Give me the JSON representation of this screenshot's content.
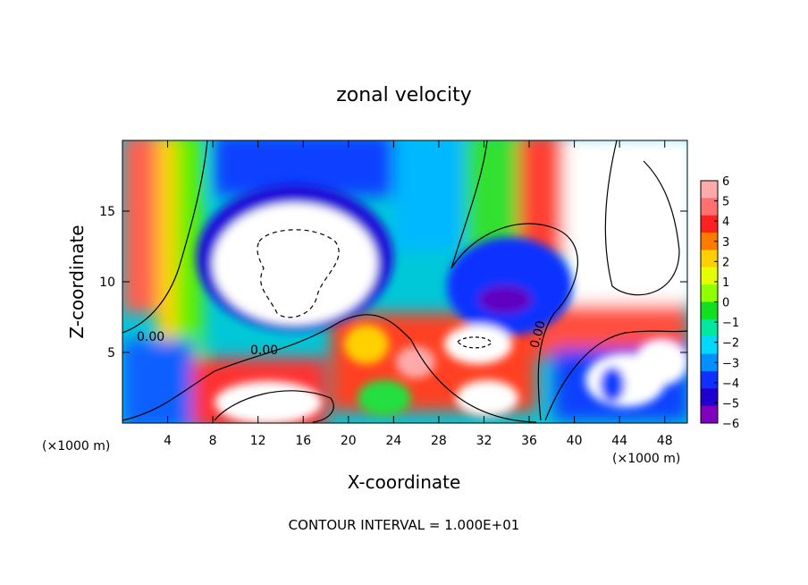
{
  "chart_data": {
    "type": "heatmap",
    "title": "zonal velocity",
    "xlabel": "X-coordinate",
    "ylabel": "Z-coordinate",
    "x_unit_note": "(×1000 m)",
    "x_unit_note_right": "(×1000 m)",
    "xlim": [
      0,
      50
    ],
    "ylim": [
      0,
      20
    ],
    "x_ticks": [
      4,
      8,
      12,
      16,
      20,
      24,
      28,
      32,
      36,
      40,
      44,
      48
    ],
    "y_ticks": [
      5,
      10,
      15
    ],
    "footer": "CONTOUR INTERVAL = 1.000E+01",
    "contour_labels": [
      "0.00",
      "0.00",
      "0.00"
    ],
    "colorbar": {
      "ticks": [
        "6",
        "5",
        "4",
        "3",
        "2",
        "1",
        "0",
        "−1",
        "−2",
        "−3",
        "−4",
        "−5",
        "−6"
      ],
      "colors": [
        "#ffaaaa",
        "#ff7070",
        "#ff2020",
        "#ff7a00",
        "#ffd000",
        "#e6ff00",
        "#90ff00",
        "#10e020",
        "#00e8a0",
        "#00d8ff",
        "#0090ff",
        "#1030ff",
        "#2000d0",
        "#8000c0"
      ]
    },
    "colors": {
      "positive_extreme": "#ffaaaa",
      "zero": "#10e020",
      "negative_extreme": "#8000c0"
    }
  }
}
